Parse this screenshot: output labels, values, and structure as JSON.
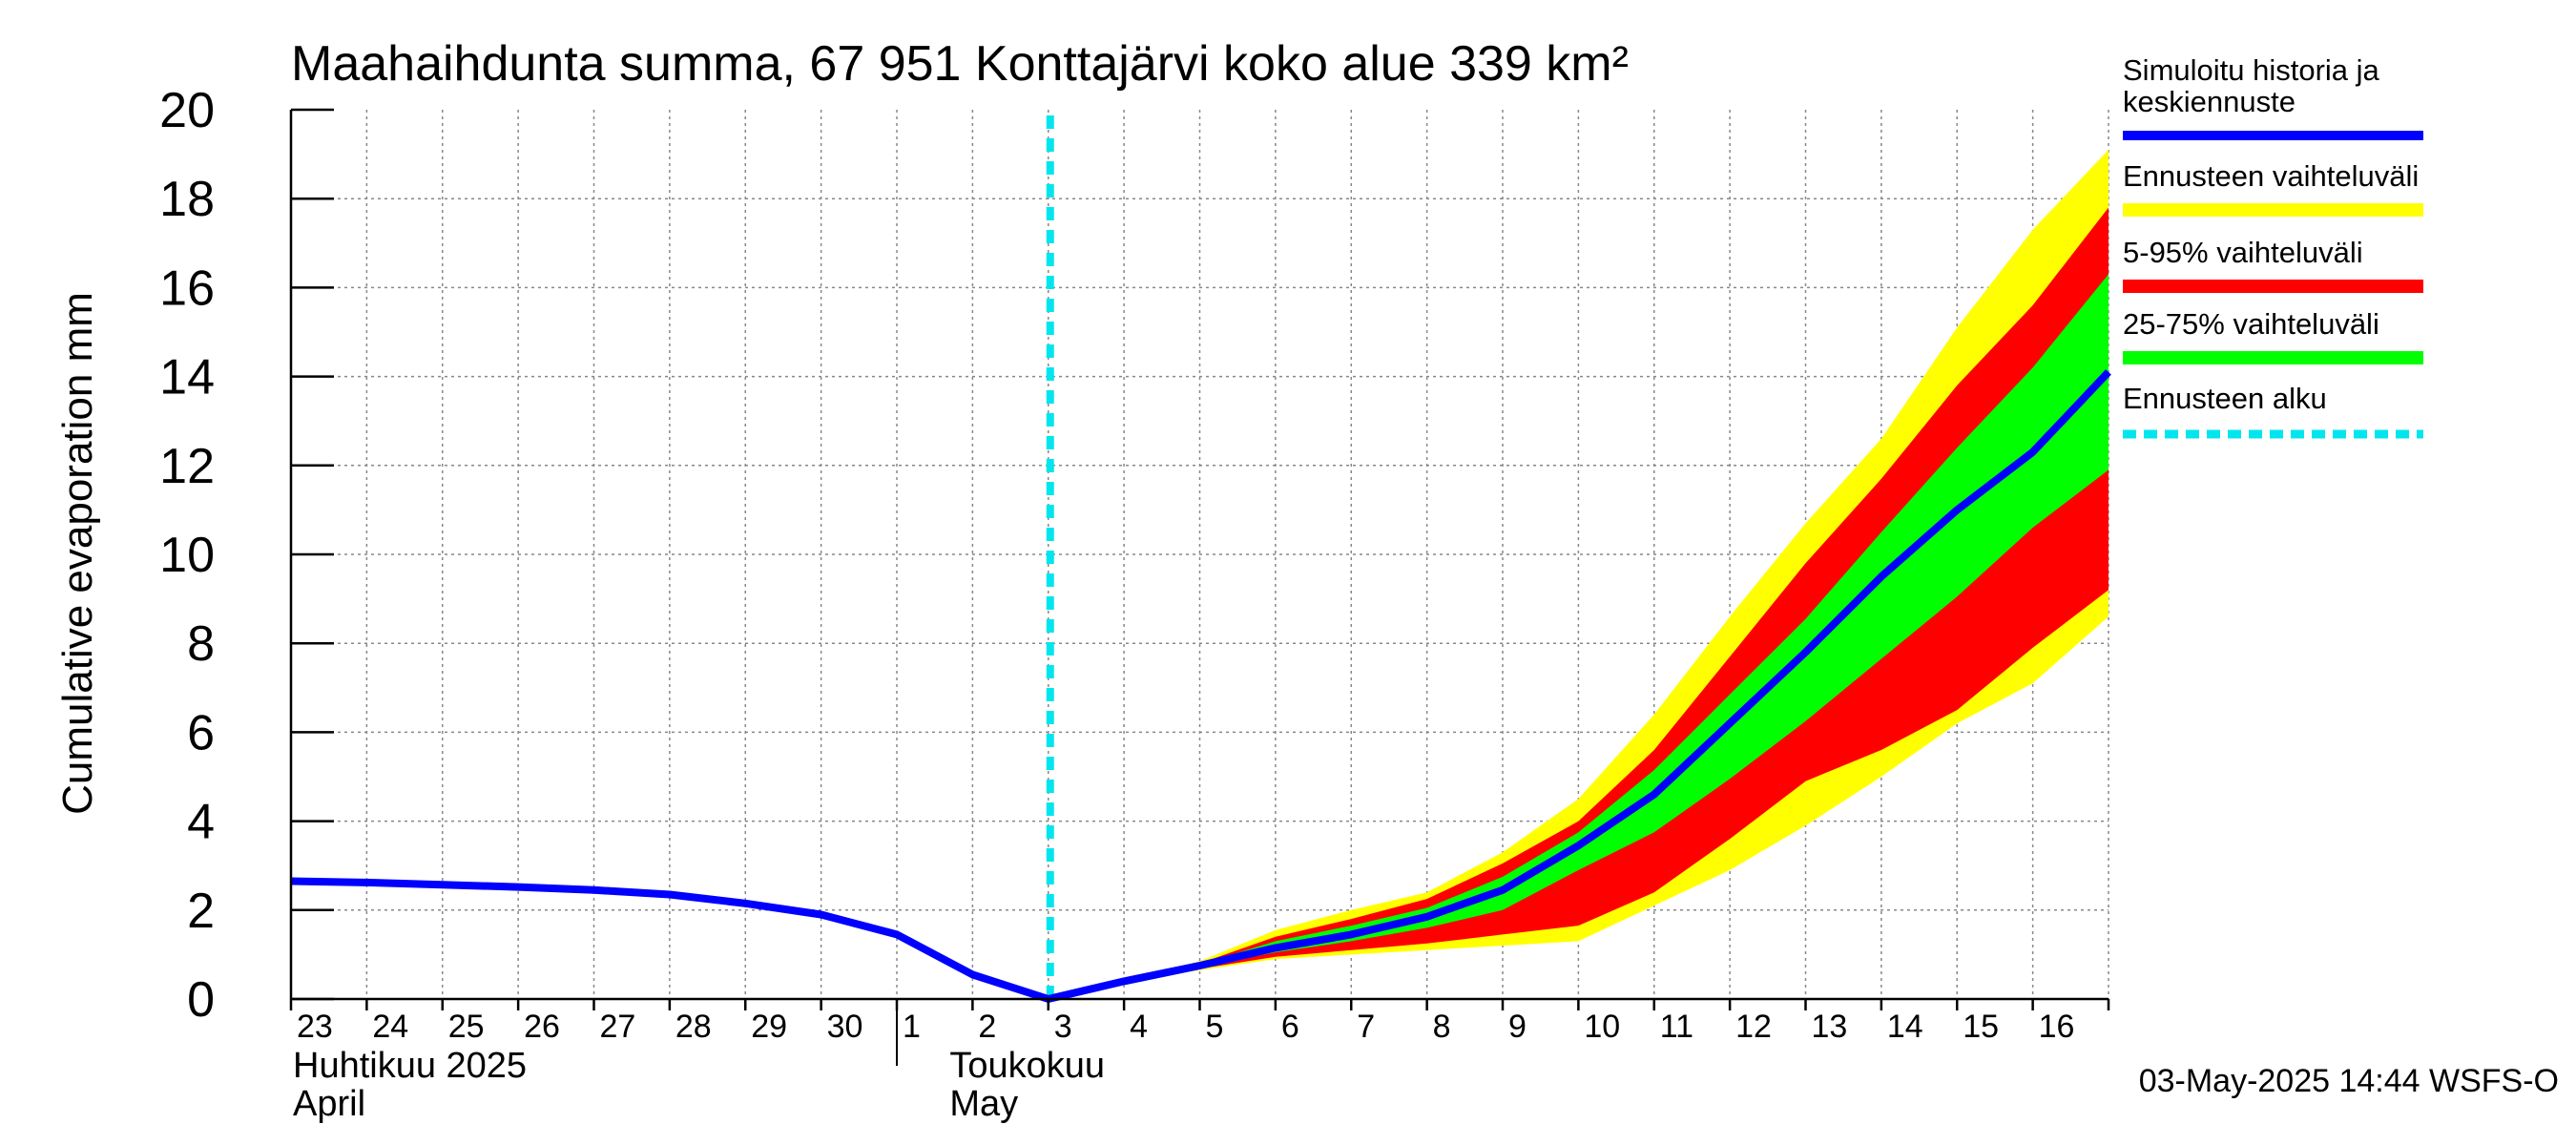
{
  "chart_data": {
    "type": "area",
    "title": "Maahaihdunta summa, 67 951 Konttajärvi koko alue 339 km²",
    "ylabel": "Cumulative evaporation   mm",
    "xlabel": "",
    "ylim": [
      0,
      20
    ],
    "y_ticks": [
      "0",
      "2",
      "4",
      "6",
      "8",
      "10",
      "12",
      "14",
      "16",
      "18",
      "20"
    ],
    "x_tick_labels": [
      "23",
      "24",
      "25",
      "26",
      "27",
      "28",
      "29",
      "30",
      "1",
      "2",
      "3",
      "4",
      "5",
      "6",
      "7",
      "8",
      "9",
      "10",
      "11",
      "12",
      "13",
      "14",
      "15",
      "16"
    ],
    "month_labels": [
      {
        "fi": "Huhtikuu  2025",
        "en": "April"
      },
      {
        "fi": "Toukokuu",
        "en": "May"
      }
    ],
    "grid": true,
    "legend_position": "right",
    "forecast_start_day": 10,
    "legend": [
      {
        "label": "Simuloitu historia ja keskiennuste",
        "label_line1": "Simuloitu historia ja",
        "label_line2": "keskiennuste",
        "color": "#0000ff",
        "style": "solid"
      },
      {
        "label": "Ennusteen vaihteluväli",
        "color": "#ffff00",
        "style": "solid"
      },
      {
        "label": "5-95% vaihteluväli",
        "color": "#ff0000",
        "style": "solid"
      },
      {
        "label": "25-75% vaihteluväli",
        "color": "#00ff00",
        "style": "solid"
      },
      {
        "label": "Ennusteen alku",
        "color": "#00e5ee",
        "style": "dashed"
      }
    ],
    "series": {
      "mean": {
        "x": [
          0,
          1,
          2,
          3,
          4,
          5,
          6,
          7,
          8,
          9,
          10,
          11,
          12,
          13,
          14,
          15,
          16,
          17,
          18,
          19,
          20,
          21,
          22,
          23,
          24
        ],
        "y": [
          2.65,
          2.62,
          2.57,
          2.52,
          2.45,
          2.35,
          2.15,
          1.9,
          1.45,
          0.55,
          0.0,
          0.4,
          0.75,
          1.15,
          1.45,
          1.85,
          2.45,
          3.45,
          4.6,
          6.2,
          7.8,
          9.5,
          11.0,
          12.3,
          14.1
        ]
      },
      "band_full": {
        "x": [
          10,
          11,
          12,
          13,
          14,
          15,
          16,
          17,
          18,
          19,
          20,
          21,
          22,
          23,
          24
        ],
        "upper": [
          0.0,
          0.42,
          0.85,
          1.55,
          2.0,
          2.4,
          3.3,
          4.5,
          6.4,
          8.6,
          10.7,
          12.6,
          15.1,
          17.3,
          19.1
        ],
        "lower": [
          0.0,
          0.38,
          0.65,
          0.9,
          1.0,
          1.1,
          1.2,
          1.3,
          2.1,
          2.9,
          3.9,
          5.0,
          6.2,
          7.1,
          8.6
        ]
      },
      "band_5_95": {
        "x": [
          10,
          11,
          12,
          13,
          14,
          15,
          16,
          17,
          18,
          19,
          20,
          21,
          22,
          23,
          24
        ],
        "upper": [
          0.0,
          0.41,
          0.8,
          1.4,
          1.8,
          2.25,
          3.05,
          4.0,
          5.6,
          7.7,
          9.8,
          11.7,
          13.8,
          15.6,
          17.8
        ],
        "lower": [
          0.0,
          0.39,
          0.68,
          0.95,
          1.1,
          1.25,
          1.45,
          1.65,
          2.4,
          3.6,
          4.9,
          5.6,
          6.5,
          7.9,
          9.2
        ]
      },
      "band_25_75": {
        "x": [
          10,
          11,
          12,
          13,
          14,
          15,
          16,
          17,
          18,
          19,
          20,
          21,
          22,
          23,
          24
        ],
        "upper": [
          0.0,
          0.41,
          0.78,
          1.3,
          1.65,
          2.05,
          2.75,
          3.75,
          5.15,
          6.85,
          8.55,
          10.5,
          12.4,
          14.2,
          16.3
        ],
        "lower": [
          0.0,
          0.39,
          0.72,
          1.05,
          1.3,
          1.6,
          2.0,
          2.9,
          3.75,
          4.95,
          6.25,
          7.65,
          9.05,
          10.6,
          11.9
        ]
      }
    }
  },
  "footer": {
    "timestamp": "03-May-2025 14:44 WSFS-O"
  }
}
